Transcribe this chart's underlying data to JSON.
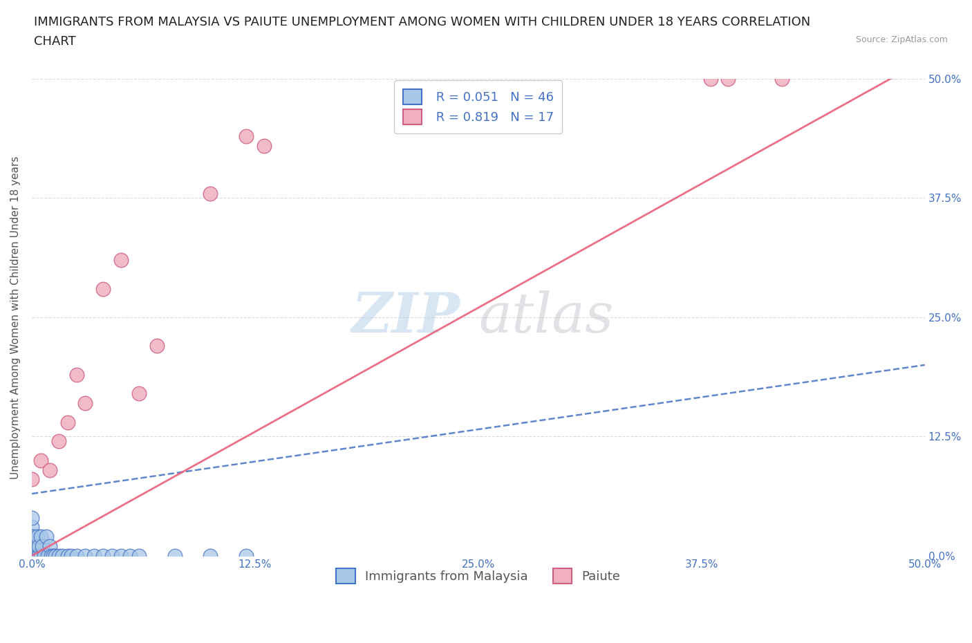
{
  "title_line1": "IMMIGRANTS FROM MALAYSIA VS PAIUTE UNEMPLOYMENT AMONG WOMEN WITH CHILDREN UNDER 18 YEARS CORRELATION",
  "title_line2": "CHART",
  "source_text": "Source: ZipAtlas.com",
  "ylabel": "Unemployment Among Women with Children Under 18 years",
  "legend_label1": "Immigrants from Malaysia",
  "legend_label2": "Paiute",
  "r1": "0.051",
  "n1": "46",
  "r2": "0.819",
  "n2": "17",
  "xlim": [
    0.0,
    0.5
  ],
  "ylim": [
    0.0,
    0.5
  ],
  "xtick_labels": [
    "0.0%",
    "",
    "12.5%",
    "",
    "25.0%",
    "",
    "37.5%",
    "",
    "50.0%"
  ],
  "xtick_values": [
    0.0,
    0.0625,
    0.125,
    0.1875,
    0.25,
    0.3125,
    0.375,
    0.4375,
    0.5
  ],
  "ytick_labels_right": [
    "0.0%",
    "12.5%",
    "25.0%",
    "37.5%",
    "50.0%"
  ],
  "ytick_values": [
    0.0,
    0.125,
    0.25,
    0.375,
    0.5
  ],
  "color_malaysia": "#a8c8e8",
  "color_paiute": "#f0b0c0",
  "color_blue": "#4472c4",
  "color_pink": "#e8607a",
  "malaysia_scatter_x": [
    0.0,
    0.0,
    0.0,
    0.0,
    0.0,
    0.0,
    0.0,
    0.0,
    0.0,
    0.0,
    0.0,
    0.0,
    0.001,
    0.001,
    0.001,
    0.002,
    0.002,
    0.003,
    0.003,
    0.004,
    0.004,
    0.005,
    0.005,
    0.006,
    0.007,
    0.008,
    0.009,
    0.01,
    0.011,
    0.012,
    0.013,
    0.015,
    0.017,
    0.02,
    0.022,
    0.025,
    0.03,
    0.035,
    0.04,
    0.045,
    0.05,
    0.055,
    0.06,
    0.08,
    0.1,
    0.12
  ],
  "malaysia_scatter_y": [
    0.0,
    0.0,
    0.0,
    0.0,
    0.0,
    0.0,
    0.01,
    0.01,
    0.02,
    0.02,
    0.03,
    0.04,
    0.0,
    0.01,
    0.02,
    0.0,
    0.01,
    0.0,
    0.02,
    0.0,
    0.01,
    0.02,
    0.0,
    0.01,
    0.0,
    0.02,
    0.0,
    0.01,
    0.0,
    0.0,
    0.0,
    0.0,
    0.0,
    0.0,
    0.0,
    0.0,
    0.0,
    0.0,
    0.0,
    0.0,
    0.0,
    0.0,
    0.0,
    0.0,
    0.0,
    0.0
  ],
  "paiute_scatter_x": [
    0.0,
    0.005,
    0.01,
    0.015,
    0.02,
    0.025,
    0.03,
    0.04,
    0.05,
    0.06,
    0.07,
    0.1,
    0.12,
    0.13,
    0.38,
    0.39,
    0.42
  ],
  "paiute_scatter_y": [
    0.08,
    0.1,
    0.09,
    0.12,
    0.14,
    0.19,
    0.16,
    0.28,
    0.31,
    0.17,
    0.22,
    0.38,
    0.44,
    0.43,
    0.5,
    0.5,
    0.5
  ],
  "malaysia_trend": [
    0.0,
    0.065,
    0.5,
    0.2
  ],
  "paiute_trend": [
    0.0,
    0.0,
    0.5,
    0.52
  ],
  "watermark_zip": "ZIP",
  "watermark_atlas": "atlas",
  "background_color": "#ffffff",
  "grid_color": "#cccccc",
  "title_fontsize": 13,
  "axis_label_fontsize": 11,
  "tick_fontsize": 11,
  "legend_fontsize": 13
}
